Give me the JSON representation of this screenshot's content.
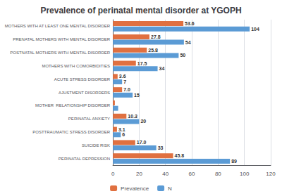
{
  "chart_data": {
    "type": "bar",
    "orientation": "horizontal",
    "title": "Prevalence of perinatal mental disorder at YGOPH",
    "categories": [
      "MOTHERS WITH AT LEAST ONE MENTAL DISORDER",
      "PRENATAL MOTHERS WITH MENTAL DISORDER",
      "POSTNATAL MOTHERS WITH MENTAL DISORDER",
      "MOTHERS WITH COMORBIDITIES",
      "ACUTE STRESS DISORDER",
      "AJUSTMENT DISORDERS",
      "MOTHER  RELATIONSHIP DISORDER",
      "PERINATAL ANXIETY",
      "POSTTRAUMATIC STRESS DISORDER",
      "SUICIDE RISK",
      "PERINATAL DEPRESSION"
    ],
    "series": [
      {
        "name": "Prevalence",
        "color": "#E07040",
        "values": [
          53.6,
          27.8,
          25.8,
          17.5,
          3.6,
          7.0,
          1.5,
          10.3,
          3.1,
          17.0,
          45.8
        ],
        "value_labels": [
          "53.6",
          "27.8",
          "25.8",
          "17.5",
          "3.6",
          "7.0",
          null,
          "10.3",
          "3.1",
          "17.0",
          "45.8"
        ]
      },
      {
        "name": "N",
        "color": "#5B9BD5",
        "values": [
          104,
          54,
          50,
          34,
          7,
          15,
          4,
          20,
          6,
          33,
          89
        ],
        "value_labels": [
          "104",
          "54",
          "50",
          "34",
          "7",
          "15",
          null,
          "20",
          "6",
          "33",
          "89"
        ]
      }
    ],
    "xlim": [
      0,
      120
    ],
    "xticks": [
      0,
      20,
      40,
      60,
      80,
      100,
      120
    ],
    "grid": true,
    "legend": "bottom",
    "data_labels": true
  }
}
